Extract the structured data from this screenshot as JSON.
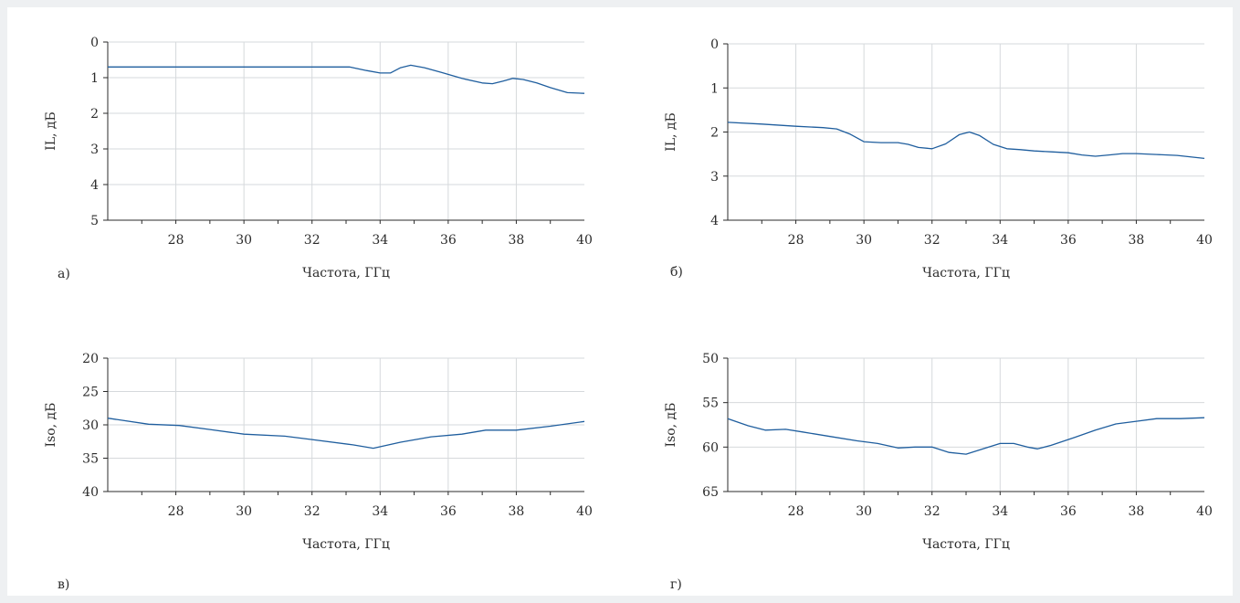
{
  "colors": {
    "line": "#1f5e9e",
    "grid": "#d6d9dc",
    "axis": "#2b2b2b"
  },
  "chart_data": [
    {
      "panel_label": "а)",
      "type": "line",
      "xlabel": "Частота, ГГц",
      "ylabel": "IL, дБ",
      "xlim": [
        26,
        40
      ],
      "ylim": [
        0,
        5
      ],
      "y_inverted": true,
      "xticks": [
        28,
        30,
        32,
        34,
        36,
        38,
        40
      ],
      "yticks": [
        0,
        1,
        2,
        3,
        4,
        5
      ],
      "grid": true,
      "series": [
        {
          "x": [
            26,
            28,
            30,
            32,
            33.1,
            33.6,
            34.0,
            34.3,
            34.6,
            34.9,
            35.3,
            35.8,
            36.4,
            37.0,
            37.3,
            37.6,
            37.9,
            38.2,
            38.6,
            39.0,
            39.5,
            40
          ],
          "y": [
            0.7,
            0.7,
            0.7,
            0.7,
            0.7,
            0.8,
            0.87,
            0.87,
            0.72,
            0.65,
            0.72,
            0.85,
            1.02,
            1.15,
            1.17,
            1.1,
            1.02,
            1.05,
            1.15,
            1.28,
            1.42,
            1.44
          ]
        }
      ]
    },
    {
      "panel_label": "б)",
      "type": "line",
      "xlabel": "Частота, ГГц",
      "ylabel": "IL, дБ",
      "xlim": [
        26,
        40
      ],
      "ylim": [
        0,
        4
      ],
      "y_inverted": true,
      "xticks": [
        28,
        30,
        32,
        34,
        36,
        38,
        40
      ],
      "yticks": [
        0,
        1,
        2,
        3,
        4
      ],
      "grid": true,
      "series": [
        {
          "x": [
            26,
            27,
            28,
            28.8,
            29.2,
            29.6,
            30.0,
            30.5,
            31.0,
            31.3,
            31.6,
            32.0,
            32.4,
            32.8,
            33.1,
            33.4,
            33.8,
            34.2,
            34.6,
            35.0,
            35.5,
            36.0,
            36.4,
            36.8,
            37.2,
            37.6,
            38.0,
            38.6,
            39.2,
            40
          ],
          "y": [
            1.78,
            1.82,
            1.87,
            1.9,
            1.93,
            2.05,
            2.22,
            2.24,
            2.24,
            2.28,
            2.35,
            2.38,
            2.27,
            2.06,
            2.0,
            2.08,
            2.28,
            2.38,
            2.4,
            2.43,
            2.45,
            2.47,
            2.52,
            2.55,
            2.52,
            2.49,
            2.49,
            2.51,
            2.53,
            2.6
          ]
        }
      ]
    },
    {
      "panel_label": "в)",
      "type": "line",
      "xlabel": "Частота, ГГц",
      "ylabel": "Iso, дБ",
      "xlim": [
        26,
        40
      ],
      "ylim": [
        20,
        40
      ],
      "y_inverted": true,
      "xticks": [
        28,
        30,
        32,
        34,
        36,
        38,
        40
      ],
      "yticks": [
        20,
        25,
        30,
        35,
        40
      ],
      "grid": true,
      "series": [
        {
          "x": [
            26,
            27.2,
            28.1,
            29,
            30,
            31.2,
            32,
            33.2,
            33.8,
            34.6,
            35.5,
            36.4,
            37.1,
            38.0,
            39.0,
            40
          ],
          "y": [
            29.0,
            29.9,
            30.1,
            30.7,
            31.4,
            31.7,
            32.2,
            33.0,
            33.5,
            32.6,
            31.8,
            31.4,
            30.8,
            30.8,
            30.2,
            29.5
          ]
        }
      ]
    },
    {
      "panel_label": "г)",
      "type": "line",
      "xlabel": "Частота, ГГц",
      "ylabel": "Iso, дБ",
      "xlim": [
        26,
        40
      ],
      "ylim": [
        50,
        65
      ],
      "y_inverted": true,
      "xticks": [
        28,
        30,
        32,
        34,
        36,
        38,
        40
      ],
      "yticks": [
        50,
        55,
        60,
        65
      ],
      "grid": true,
      "series": [
        {
          "x": [
            26,
            26.6,
            27.1,
            27.7,
            28.2,
            29,
            29.8,
            30.4,
            31.0,
            31.5,
            32.0,
            32.5,
            33.0,
            33.5,
            34.0,
            34.4,
            34.8,
            35.1,
            35.5,
            36.2,
            36.8,
            37.4,
            38.0,
            38.6,
            39.3,
            40
          ],
          "y": [
            56.8,
            57.6,
            58.1,
            58.0,
            58.3,
            58.8,
            59.3,
            59.6,
            60.1,
            60.0,
            60.0,
            60.6,
            60.8,
            60.2,
            59.6,
            59.6,
            60.0,
            60.2,
            59.8,
            58.9,
            58.1,
            57.4,
            57.1,
            56.8,
            56.8,
            56.7
          ]
        }
      ]
    }
  ]
}
